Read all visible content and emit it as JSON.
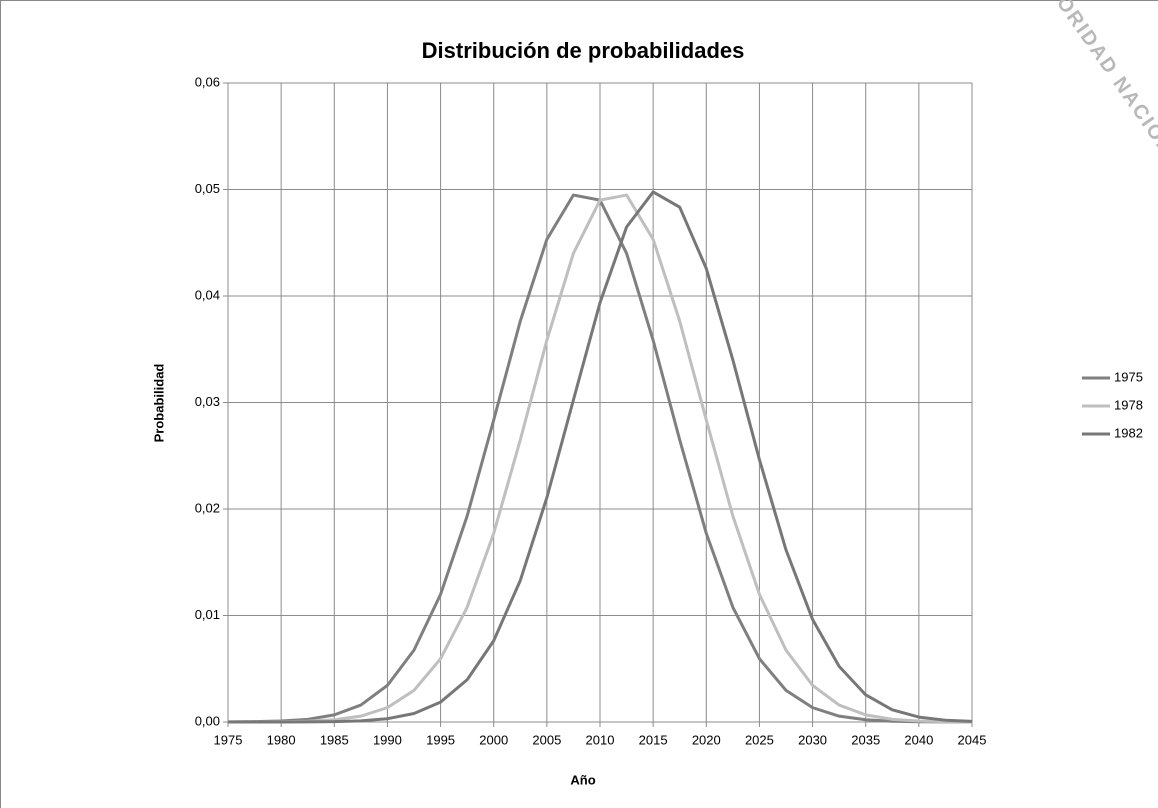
{
  "chart_data": {
    "type": "line",
    "title": "Distribución de probabilidades",
    "xlabel": "Año",
    "ylabel": "Probabilidad",
    "annotation": "AUTORIDAD NACIONAL",
    "x": [
      1975,
      1977.5,
      1980,
      1982.5,
      1985,
      1987.5,
      1990,
      1992.5,
      1995,
      1997.5,
      2000,
      2002.5,
      2005,
      2007.5,
      2010,
      2012.5,
      2015,
      2017.5,
      2020,
      2022.5,
      2025,
      2027.5,
      2030,
      2032.5,
      2035,
      2037.5,
      2040,
      2042.5,
      2045
    ],
    "series": [
      {
        "name": "1975",
        "color": "#7f7f7f",
        "values": [
          1e-05,
          3e-05,
          9e-05,
          0.00025,
          0.00067,
          0.00159,
          0.00344,
          0.00675,
          0.01198,
          0.01934,
          0.02836,
          0.03764,
          0.04532,
          0.04948,
          0.049,
          0.04401,
          0.03584,
          0.02649,
          0.01771,
          0.01077,
          0.00594,
          0.00297,
          0.00135,
          0.00055,
          0.00021,
          7e-05,
          2e-05,
          1e-05,
          0
        ]
      },
      {
        "name": "1978",
        "color": "#bfbfbf",
        "values": [
          0,
          1e-05,
          2e-05,
          7e-05,
          0.00021,
          0.00055,
          0.00135,
          0.00297,
          0.00594,
          0.01077,
          0.01771,
          0.02649,
          0.03584,
          0.04401,
          0.049,
          0.04948,
          0.04532,
          0.03764,
          0.02836,
          0.01934,
          0.01198,
          0.00675,
          0.00344,
          0.00159,
          0.00067,
          0.00025,
          9e-05,
          3e-05,
          1e-05
        ]
      },
      {
        "name": "1982",
        "color": "#777777",
        "values": [
          0,
          0,
          0,
          1e-05,
          3e-05,
          0.00011,
          0.00031,
          0.0008,
          0.00187,
          0.00397,
          0.00763,
          0.01329,
          0.02107,
          0.03025,
          0.03937,
          0.04648,
          0.04977,
          0.04834,
          0.04258,
          0.034,
          0.02463,
          0.01616,
          0.00963,
          0.00522,
          0.00255,
          0.00114,
          0.00046,
          0.00017,
          6e-05
        ]
      }
    ],
    "xlim": [
      1975,
      2045
    ],
    "xticks": [
      1975,
      1980,
      1985,
      1990,
      1995,
      2000,
      2005,
      2010,
      2015,
      2020,
      2025,
      2030,
      2035,
      2040,
      2045
    ],
    "ylim": [
      0,
      0.06
    ],
    "yticks": [
      {
        "value": 0,
        "label": "0,00"
      },
      {
        "value": 0.01,
        "label": "0,01"
      },
      {
        "value": 0.02,
        "label": "0,02"
      },
      {
        "value": 0.03,
        "label": "0,03"
      },
      {
        "value": 0.04,
        "label": "0,04"
      },
      {
        "value": 0.05,
        "label": "0,05"
      },
      {
        "value": 0.06,
        "label": "0,06"
      }
    ],
    "grid": true,
    "legend": "right"
  }
}
